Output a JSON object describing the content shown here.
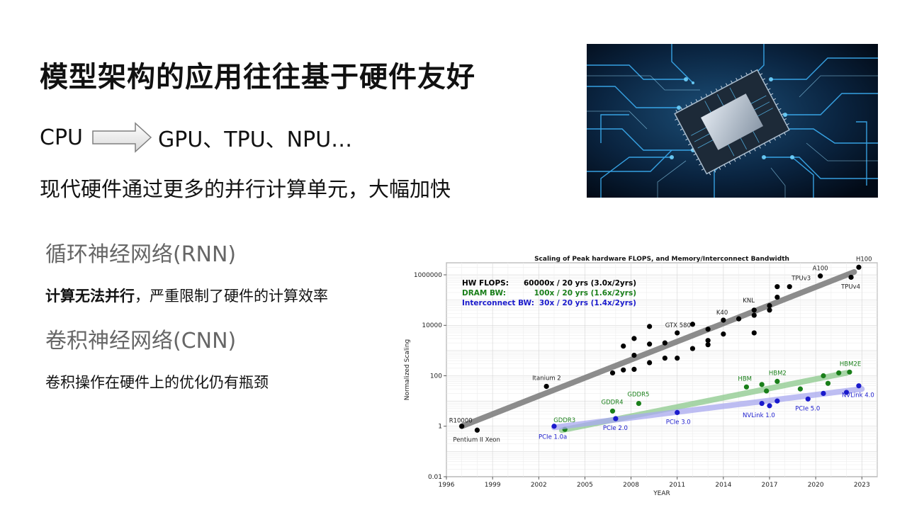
{
  "slide": {
    "title": "模型架构的应用往往基于硬件友好",
    "cpu": "CPU",
    "accelerators": "GPU、TPU、NPU…",
    "parallel_line": "现代硬件通过更多的并行计算单元，大幅加快",
    "rnn_heading": "循环神经网络(RNN)",
    "rnn_desc_bold": "计算无法并行",
    "rnn_desc_rest": "，严重限制了硬件的计算效率",
    "cnn_heading": "卷积神经网络(CNN)",
    "cnn_desc": "卷积操作在硬件上的优化仍有瓶颈"
  },
  "icons": {
    "arrow": "right-arrow-icon",
    "photo": "circuit-board-chip-image"
  },
  "chart_data": {
    "type": "scatter",
    "title": "Scaling of Peak hardware FLOPS, and Memory/Interconnect Bandwidth",
    "xlabel": "YEAR",
    "ylabel": "Normalized Scaling",
    "yscale": "log",
    "xlim": [
      1996,
      2024
    ],
    "ylim": [
      0.01,
      3000000
    ],
    "xticks": [
      1996,
      1999,
      2002,
      2005,
      2008,
      2011,
      2014,
      2017,
      2020,
      2023
    ],
    "yticks": [
      {
        "v": 0.01,
        "label": "0.01"
      },
      {
        "v": 1,
        "label": "1"
      },
      {
        "v": 100,
        "label": "100"
      },
      {
        "v": 10000,
        "label": "10000"
      },
      {
        "v": 1000000,
        "label": "1000000"
      }
    ],
    "grid": true,
    "legend": [
      {
        "label": "HW FLOPS:",
        "value": "60000x / 20 yrs (3.0x/2yrs)",
        "color": "#000000"
      },
      {
        "label": "DRAM BW:",
        "value": "100x / 20 yrs (1.6x/2yrs)",
        "color": "#1a7f1a"
      },
      {
        "label": "Interconnect BW:",
        "value": "30x / 20 yrs (1.4x/2yrs)",
        "color": "#1a1acc"
      }
    ],
    "series": [
      {
        "name": "HW FLOPS",
        "color": "#000000",
        "trend": [
          [
            1997,
            1
          ],
          [
            2022.5,
            1300000
          ]
        ],
        "trend_color": "#808080",
        "points": [
          [
            1997,
            1
          ],
          [
            1998,
            0.7
          ],
          [
            2002.5,
            38
          ],
          [
            2006.8,
            130
          ],
          [
            2007.5,
            170
          ],
          [
            2007.5,
            1500
          ],
          [
            2008.2,
            180
          ],
          [
            2008.2,
            3000
          ],
          [
            2008.2,
            650
          ],
          [
            2009.2,
            9000
          ],
          [
            2009.2,
            1800
          ],
          [
            2009.2,
            330
          ],
          [
            2010.2,
            500
          ],
          [
            2010.2,
            2000
          ],
          [
            2011,
            500
          ],
          [
            2011,
            5000
          ],
          [
            2012,
            11000
          ],
          [
            2012,
            1200
          ],
          [
            2013,
            2500
          ],
          [
            2013,
            1700
          ],
          [
            2013,
            7000
          ],
          [
            2014,
            16000
          ],
          [
            2014,
            4500
          ],
          [
            2015,
            18000
          ],
          [
            2016,
            40000
          ],
          [
            2016,
            25000
          ],
          [
            2016,
            5000
          ],
          [
            2017,
            60000
          ],
          [
            2017,
            40000
          ],
          [
            2017.5,
            130000
          ],
          [
            2017.5,
            340000
          ],
          [
            2018.3,
            340000
          ],
          [
            2020.3,
            900000
          ],
          [
            2022.3,
            800000
          ],
          [
            2022.8,
            2000000
          ]
        ],
        "labels": [
          {
            "text": "R10000",
            "x": 1997,
            "y": 1
          },
          {
            "text": "Pentium II Xeon",
            "x": 1998,
            "y": 0.7
          },
          {
            "text": "Itanium 2",
            "x": 2002.5,
            "y": 38
          },
          {
            "text": "GTX 580",
            "x": 2011,
            "y": 5000
          },
          {
            "text": "K40",
            "x": 2014,
            "y": 16000
          },
          {
            "text": "KNL",
            "x": 2016,
            "y": 40000
          },
          {
            "text": "TPUv3",
            "x": 2018.3,
            "y": 340000
          },
          {
            "text": "A100",
            "x": 2020.3,
            "y": 900000
          },
          {
            "text": "H100",
            "x": 2022.8,
            "y": 2000000
          },
          {
            "text": "TPUv4",
            "x": 2022.3,
            "y": 800000
          }
        ]
      },
      {
        "name": "DRAM BW",
        "color": "#1a7f1a",
        "trend": [
          [
            2003.5,
            0.7
          ],
          [
            2022,
            130
          ]
        ],
        "trend_color": "#8cc98c",
        "points": [
          [
            2003.7,
            0.75
          ],
          [
            2006.8,
            4
          ],
          [
            2008.5,
            8
          ],
          [
            2015.5,
            36
          ],
          [
            2016.5,
            45
          ],
          [
            2016.8,
            25
          ],
          [
            2017.5,
            60
          ],
          [
            2019,
            30
          ],
          [
            2020.5,
            100
          ],
          [
            2020.8,
            50
          ],
          [
            2021.5,
            130
          ],
          [
            2022.2,
            140
          ]
        ],
        "labels": [
          {
            "text": "GDDR3",
            "x": 2003.7,
            "y": 0.75
          },
          {
            "text": "GDDR4",
            "x": 2006.8,
            "y": 4
          },
          {
            "text": "GDDR5",
            "x": 2008.5,
            "y": 8
          },
          {
            "text": "HBM",
            "x": 2015.5,
            "y": 36
          },
          {
            "text": "HBM2",
            "x": 2017.5,
            "y": 60
          },
          {
            "text": "HBM2E",
            "x": 2022.2,
            "y": 140
          }
        ]
      },
      {
        "name": "Interconnect BW",
        "color": "#1a1acc",
        "trend": [
          [
            2003,
            0.9
          ],
          [
            2023,
            30
          ]
        ],
        "trend_color": "#a9a9f0",
        "points": [
          [
            2003,
            1
          ],
          [
            2007,
            2
          ],
          [
            2011,
            3.5
          ],
          [
            2016.5,
            8
          ],
          [
            2017,
            6.5
          ],
          [
            2017.5,
            10
          ],
          [
            2019.5,
            12
          ],
          [
            2020.5,
            20
          ],
          [
            2022,
            22
          ],
          [
            2022.8,
            40
          ]
        ],
        "labels": [
          {
            "text": "PCIe 1.0a",
            "x": 2003,
            "y": 1
          },
          {
            "text": "PCIe 2.0",
            "x": 2007,
            "y": 2
          },
          {
            "text": "PCIe 3.0",
            "x": 2011,
            "y": 3.5
          },
          {
            "text": "NVLink 1.0",
            "x": 2017,
            "y": 6.5
          },
          {
            "text": "PCIe 5.0",
            "x": 2019.5,
            "y": 12
          },
          {
            "text": "NVLink 4.0",
            "x": 2022.8,
            "y": 40
          }
        ]
      }
    ]
  }
}
